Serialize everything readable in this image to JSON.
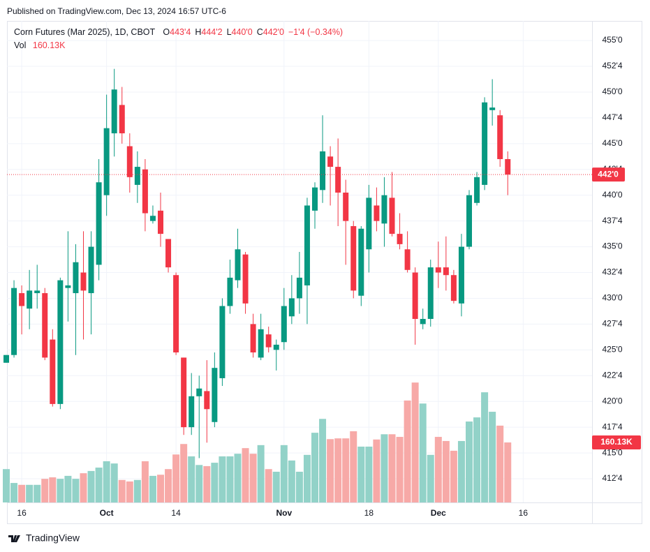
{
  "header": {
    "published": "Published on TradingView.com, Dec 13, 2024 16:57 UTC-6",
    "brand": "TradingView"
  },
  "chart_data": {
    "type": "candlestick",
    "symbol": "Corn Futures (Mar 2025), 1D, CBOT",
    "legend_ohlc": [
      {
        "key": "O",
        "value": "443'4"
      },
      {
        "key": "H",
        "value": "444'2"
      },
      {
        "key": "L",
        "value": "440'0"
      },
      {
        "key": "C",
        "value": "442'0"
      }
    ],
    "change": "−1'4 (−0.34%)",
    "volume_label": "Vol",
    "volume_value_label": "160.13K",
    "last_price": {
      "value": 442,
      "label": "442'0"
    },
    "up_color": "#089981",
    "down_color": "#f23645",
    "volume_up_color": "#92d2c8",
    "volume_down_color": "#f7a9a7",
    "open": [
      423.75,
      424.5,
      430.5,
      429,
      430.5,
      430.5,
      426,
      419.75,
      431,
      430.5,
      432.5,
      430.5,
      433.25,
      440,
      446,
      448.75,
      444.75,
      441,
      442.5,
      437.5,
      438.5,
      435.75,
      432.25,
      424.25,
      417.5,
      420.5,
      421,
      418,
      422.25,
      429.25,
      431.75,
      434.25,
      427.5,
      424.25,
      426.5,
      425,
      425.75,
      428.25,
      430,
      431.25,
      438.5,
      440.5,
      443.75,
      442.75,
      440.25,
      437,
      430.25,
      434.75,
      439,
      437.25,
      439.75,
      436.25,
      434.75,
      432.5,
      427.5,
      428,
      433,
      433,
      432.25,
      429.5,
      435,
      439.25,
      441,
      448.25,
      447.75,
      443.5
    ],
    "high": [
      424.5,
      431.75,
      431.25,
      432.75,
      433.25,
      431,
      427,
      432,
      436.5,
      435.25,
      436.5,
      436.5,
      443.5,
      449.75,
      452.25,
      450.5,
      446,
      444.25,
      443.5,
      439,
      440.25,
      435.75,
      432.5,
      424.25,
      422.75,
      422.5,
      424,
      424.75,
      430,
      433.75,
      436.75,
      434.5,
      428.5,
      428.5,
      427.25,
      426,
      431,
      432.25,
      434.5,
      439.75,
      441.25,
      447.75,
      444.75,
      445.5,
      441.5,
      437.5,
      437,
      441,
      440.75,
      441.75,
      442.25,
      438.25,
      436.5,
      433,
      429,
      433.75,
      435.5,
      436,
      432.75,
      436.25,
      440.5,
      442.25,
      449.5,
      451.25,
      448.25,
      444.25
    ],
    "low": [
      423.75,
      424.25,
      426.5,
      427,
      429,
      424,
      419.5,
      419.25,
      427.75,
      424.5,
      426,
      426.5,
      431.75,
      438,
      443.75,
      445,
      440.25,
      439.25,
      436.5,
      437.25,
      435,
      432.5,
      424.5,
      416.75,
      416.75,
      414.5,
      416,
      417.5,
      421.5,
      428.5,
      431,
      428.5,
      424.25,
      424,
      424.75,
      423,
      425,
      427.5,
      428.5,
      427.5,
      436.75,
      439.25,
      439,
      437,
      433.25,
      430,
      429.25,
      432.5,
      436.5,
      435,
      436,
      434.75,
      432.5,
      425.5,
      427,
      427.25,
      431,
      430.75,
      429.5,
      428.25,
      434.75,
      439,
      440.5,
      446.75,
      442.75,
      440
    ],
    "close": [
      424.5,
      431,
      429.25,
      430.75,
      430.75,
      424.25,
      419.75,
      431.75,
      431.25,
      433.5,
      430.75,
      435,
      441.25,
      446.5,
      450.25,
      446,
      441.75,
      442.75,
      438.25,
      438,
      436.25,
      433,
      424.75,
      417.5,
      420.5,
      421.25,
      419.25,
      423.25,
      429.25,
      432,
      434.75,
      429.5,
      424.75,
      427,
      425.25,
      425.5,
      429.25,
      430,
      432,
      439,
      440.75,
      444.25,
      442.75,
      440.25,
      437.5,
      430.75,
      436.75,
      439.75,
      437.5,
      440,
      436.25,
      435.25,
      432.75,
      428,
      428,
      433,
      432.5,
      432.25,
      429.75,
      435,
      440,
      441.75,
      449,
      448.5,
      443.5,
      442
    ],
    "volume": [
      89,
      52,
      47,
      47,
      47,
      63,
      67,
      63,
      71,
      63,
      78,
      84,
      93,
      110,
      104,
      60,
      56,
      60,
      110,
      71,
      74,
      89,
      128,
      156,
      123,
      100,
      97,
      106,
      123,
      123,
      130,
      145,
      130,
      153,
      89,
      82,
      153,
      112,
      82,
      127,
      186,
      223,
      169,
      171,
      171,
      190,
      149,
      149,
      168,
      182,
      182,
      175,
      272,
      320,
      264,
      127,
      175,
      164,
      138,
      164,
      216,
      227,
      294,
      242,
      205,
      160.13
    ],
    "ylim": [
      410.2,
      456.9
    ],
    "y2lim": [
      0,
      1285
    ],
    "yticks": [
      {
        "value": 412.5,
        "label": "412'4"
      },
      {
        "value": 415,
        "label": "415'0"
      },
      {
        "value": 417.5,
        "label": "417'4"
      },
      {
        "value": 420,
        "label": "420'0"
      },
      {
        "value": 422.5,
        "label": "422'4"
      },
      {
        "value": 425,
        "label": "425'0"
      },
      {
        "value": 427.5,
        "label": "427'4"
      },
      {
        "value": 430,
        "label": "430'0"
      },
      {
        "value": 432.5,
        "label": "432'4"
      },
      {
        "value": 435,
        "label": "435'0"
      },
      {
        "value": 437.5,
        "label": "437'4"
      },
      {
        "value": 440,
        "label": "440'0"
      },
      {
        "value": 442.5,
        "label": "442'4"
      },
      {
        "value": 445,
        "label": "445'0"
      },
      {
        "value": 447.5,
        "label": "447'4"
      },
      {
        "value": 450,
        "label": "450'0"
      },
      {
        "value": 452.5,
        "label": "452'4"
      },
      {
        "value": 455,
        "label": "455'0"
      }
    ],
    "xticks": [
      {
        "value": 2,
        "label": "16"
      },
      {
        "value": 13,
        "label": "Oct"
      },
      {
        "value": 22,
        "label": "14"
      },
      {
        "value": 36,
        "label": "Nov"
      },
      {
        "value": 47,
        "label": "18"
      },
      {
        "value": 56,
        "label": "Dec"
      },
      {
        "value": 67,
        "label": "16"
      }
    ],
    "grid": true
  }
}
